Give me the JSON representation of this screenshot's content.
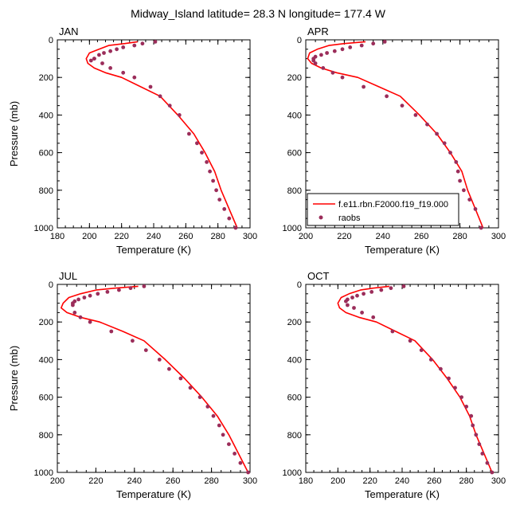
{
  "title": "Midway_Island  latitude= 28.3 N longitude= 177.4 W",
  "colors": {
    "model_line": "#ff0000",
    "obs_marker": "#9b2d5a"
  },
  "legend": {
    "model_label": "f.e11.rbn.F2000.f19_f19.000",
    "obs_label": "raobs",
    "placement": "lower-left of APR panel"
  },
  "chart_data": [
    {
      "type": "line",
      "panel_label": "JAN",
      "xlabel": "Temperature (K)",
      "ylabel": "Pressure (mb)",
      "xlim": [
        180,
        300
      ],
      "ylim": [
        1000,
        0
      ],
      "xticks": [
        180,
        200,
        220,
        240,
        260,
        280,
        300
      ],
      "yticks": [
        0,
        200,
        400,
        600,
        800,
        1000
      ],
      "series": [
        {
          "name": "f.e11.rbn.F2000.f19_f19.000",
          "kind": "line",
          "x": [
            230,
            222,
            212,
            206,
            200,
            198,
            199,
            203,
            210,
            220,
            232,
            244,
            255,
            265,
            272,
            278,
            282,
            287,
            292
          ],
          "y": [
            10,
            20,
            30,
            50,
            70,
            100,
            125,
            150,
            175,
            200,
            250,
            300,
            400,
            500,
            600,
            700,
            800,
            900,
            1000
          ]
        },
        {
          "name": "raobs",
          "kind": "scatter",
          "x": [
            241,
            233,
            228,
            221,
            217,
            213,
            209,
            206,
            203,
            201,
            203,
            208,
            213,
            221,
            228,
            238,
            244,
            250,
            256,
            262,
            267,
            270,
            273,
            275,
            277,
            279,
            281,
            284,
            287,
            291
          ],
          "y": [
            10,
            20,
            30,
            40,
            50,
            60,
            70,
            80,
            100,
            110,
            100,
            125,
            150,
            175,
            200,
            250,
            300,
            350,
            400,
            500,
            550,
            600,
            650,
            700,
            750,
            800,
            850,
            900,
            950,
            1000
          ]
        }
      ]
    },
    {
      "type": "line",
      "panel_label": "APR",
      "xlabel": "Temperature (K)",
      "ylabel": "",
      "xlim": [
        200,
        300
      ],
      "ylim": [
        1000,
        0
      ],
      "xticks": [
        200,
        220,
        240,
        260,
        280,
        300
      ],
      "yticks": [
        0,
        200,
        400,
        600,
        800,
        1000
      ],
      "series": [
        {
          "name": "f.e11.rbn.F2000.f19_f19.000",
          "kind": "line",
          "x": [
            231,
            220,
            212,
            206,
            202,
            201,
            203,
            208,
            216,
            227,
            238,
            249,
            259,
            268,
            275,
            281,
            284,
            288,
            292
          ],
          "y": [
            10,
            20,
            30,
            50,
            70,
            100,
            125,
            150,
            175,
            200,
            250,
            300,
            400,
            500,
            600,
            700,
            800,
            900,
            1000
          ]
        },
        {
          "name": "raobs",
          "kind": "scatter",
          "x": [
            241,
            235,
            229,
            223,
            219,
            215,
            211,
            208,
            205,
            204,
            204,
            205,
            209,
            214,
            219,
            230,
            242,
            250,
            257,
            263,
            268,
            272,
            275,
            278,
            279,
            280,
            282,
            285,
            288,
            291
          ],
          "y": [
            10,
            20,
            30,
            40,
            50,
            60,
            70,
            80,
            90,
            100,
            110,
            125,
            150,
            175,
            200,
            250,
            300,
            350,
            400,
            450,
            500,
            550,
            600,
            650,
            700,
            750,
            800,
            850,
            900,
            1000
          ]
        }
      ]
    },
    {
      "type": "line",
      "panel_label": "JUL",
      "xlabel": "Temperature (K)",
      "ylabel": "Pressure (mb)",
      "xlim": [
        200,
        300
      ],
      "ylim": [
        1000,
        0
      ],
      "xticks": [
        200,
        220,
        240,
        260,
        280,
        300
      ],
      "yticks": [
        0,
        200,
        400,
        600,
        800,
        1000
      ],
      "series": [
        {
          "name": "f.e11.rbn.F2000.f19_f19.000",
          "kind": "line",
          "x": [
            242,
            230,
            220,
            212,
            206,
            203,
            202,
            205,
            212,
            222,
            234,
            245,
            256,
            266,
            275,
            283,
            289,
            294,
            299
          ],
          "y": [
            10,
            20,
            30,
            50,
            70,
            100,
            125,
            150,
            175,
            200,
            250,
            300,
            400,
            500,
            600,
            700,
            800,
            900,
            1000
          ]
        },
        {
          "name": "raobs",
          "kind": "scatter",
          "x": [
            245,
            238,
            232,
            226,
            221,
            217,
            214,
            211,
            209,
            208,
            208,
            209,
            212,
            217,
            228,
            239,
            246,
            253,
            258,
            264,
            269,
            274,
            278,
            281,
            284,
            286,
            289,
            292,
            295,
            299
          ],
          "y": [
            10,
            20,
            30,
            40,
            50,
            60,
            70,
            80,
            90,
            100,
            110,
            150,
            175,
            200,
            250,
            300,
            350,
            400,
            450,
            500,
            550,
            600,
            650,
            700,
            750,
            800,
            850,
            900,
            950,
            1000
          ]
        }
      ]
    },
    {
      "type": "line",
      "panel_label": "OCT",
      "xlabel": "Temperature (K)",
      "ylabel": "",
      "xlim": [
        180,
        300
      ],
      "ylim": [
        1000,
        0
      ],
      "xticks": [
        180,
        200,
        220,
        240,
        260,
        280,
        300
      ],
      "yticks": [
        0,
        200,
        400,
        600,
        800,
        1000
      ],
      "series": [
        {
          "name": "f.e11.rbn.F2000.f19_f19.000",
          "kind": "line",
          "x": [
            232,
            222,
            214,
            207,
            202,
            200,
            201,
            205,
            213,
            224,
            236,
            248,
            259,
            268,
            276,
            282,
            286,
            291,
            296
          ],
          "y": [
            10,
            20,
            30,
            50,
            70,
            100,
            125,
            150,
            175,
            200,
            250,
            300,
            400,
            500,
            600,
            700,
            800,
            900,
            1000
          ]
        },
        {
          "name": "raobs",
          "kind": "scatter",
          "x": [
            241,
            233,
            227,
            221,
            216,
            212,
            209,
            206,
            205,
            206,
            210,
            215,
            222,
            234,
            245,
            252,
            258,
            264,
            269,
            273,
            277,
            280,
            283,
            284,
            286,
            288,
            290,
            293,
            296
          ],
          "y": [
            10,
            20,
            30,
            40,
            50,
            60,
            70,
            80,
            90,
            110,
            125,
            150,
            175,
            250,
            300,
            350,
            400,
            450,
            500,
            550,
            600,
            650,
            700,
            750,
            800,
            850,
            900,
            950,
            1000
          ]
        }
      ]
    }
  ]
}
